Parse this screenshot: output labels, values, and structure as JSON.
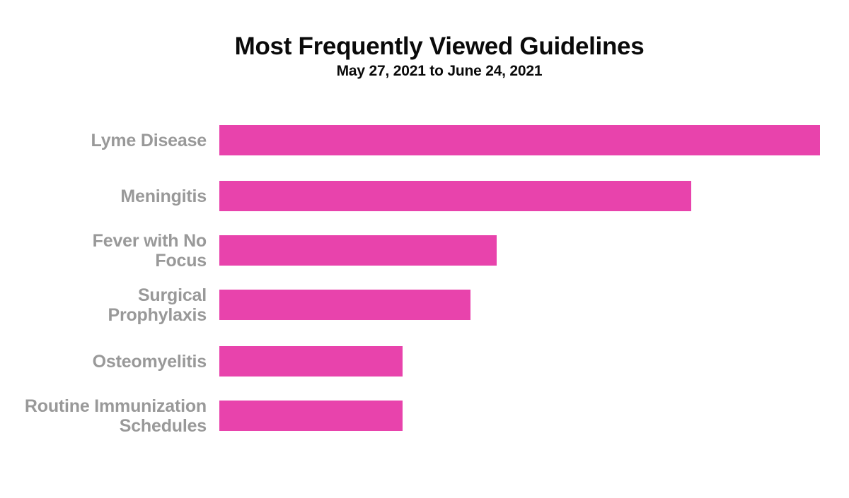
{
  "chart_data": {
    "type": "bar",
    "orientation": "horizontal",
    "title": "Most Frequently Viewed Guidelines",
    "subtitle": "May 27, 2021 to June 24, 2021",
    "categories": [
      "Lyme Disease",
      "Meningitis",
      "Fever with No Focus",
      "Surgical Prophylaxis",
      "Osteomyelitis",
      "Routine Immunization Schedules"
    ],
    "values_pct_of_max": [
      100,
      78.6,
      46.2,
      41.8,
      30.5,
      30.5
    ],
    "axis_ticks_visible": false,
    "gridlines": false,
    "legend": false,
    "bar_color": "#e843ac",
    "label_color": "#999999",
    "rows": [
      {
        "label": "Lyme Disease",
        "pct_of_max": 100
      },
      {
        "label": "Meningitis",
        "pct_of_max": 78.6
      },
      {
        "label": "Fever with No\nFocus",
        "pct_of_max": 46.2
      },
      {
        "label": "Surgical\nProphylaxis",
        "pct_of_max": 41.8
      },
      {
        "label": "Osteomyelitis",
        "pct_of_max": 30.5
      },
      {
        "label": "Routine Immunization\nSchedules",
        "pct_of_max": 30.5
      }
    ]
  }
}
